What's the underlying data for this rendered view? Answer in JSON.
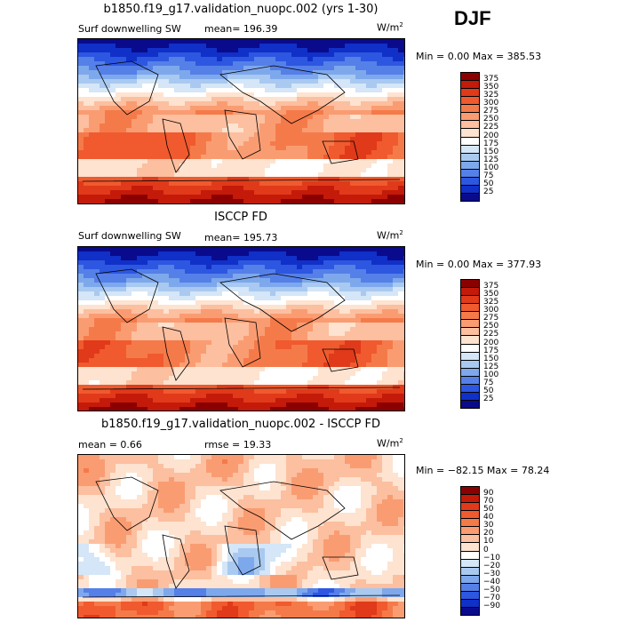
{
  "season": "DJF",
  "panels": [
    {
      "title": "b1850.f19_g17.validation_nuopc.002 (yrs 1-30)",
      "left_label": "Surf downwelling SW",
      "center_label": "mean=  196.39",
      "units": "W/m",
      "units_sup": "2",
      "range_text": "Min =    0.00 Max = 385.53",
      "palette": "abs"
    },
    {
      "title": "ISCCP FD",
      "left_label": "Surf downwelling SW",
      "center_label": "mean=  195.73",
      "units": "W/m",
      "units_sup": "2",
      "range_text": "Min =    0.00 Max = 377.93",
      "palette": "abs"
    },
    {
      "title": "b1850.f19_g17.validation_nuopc.002 - ISCCP FD",
      "left_label": "mean =    0.66",
      "center_label": "rmse =  19.33",
      "units": "W/m",
      "units_sup": "2",
      "range_text": "Min = −82.15 Max =  78.24",
      "palette": "diff"
    }
  ],
  "colorbars": {
    "abs": {
      "labels": [
        "375",
        "350",
        "325",
        "300",
        "275",
        "250",
        "225",
        "200",
        "175",
        "150",
        "125",
        "100",
        "75",
        "50",
        "25"
      ],
      "colors": [
        "#8b0000",
        "#c41a0a",
        "#e03a1a",
        "#f05a2e",
        "#f57a4a",
        "#fa9c72",
        "#fcbfa0",
        "#fde3d0",
        "#ffffff",
        "#d4e6f7",
        "#a9c9f0",
        "#7ea8ec",
        "#5580e8",
        "#2d57e0",
        "#1030c8",
        "#0a0a8c"
      ]
    },
    "diff": {
      "labels": [
        "90",
        "70",
        "50",
        "40",
        "30",
        "20",
        "10",
        "0",
        "−10",
        "−20",
        "−30",
        "−40",
        "−50",
        "−70",
        "−90"
      ],
      "colors": [
        "#8b0000",
        "#c41a0a",
        "#e03a1a",
        "#f05a2e",
        "#f57a4a",
        "#fa9c72",
        "#fcbfa0",
        "#fde3d0",
        "#ffffff",
        "#d4e6f7",
        "#a9c9f0",
        "#7ea8ec",
        "#5580e8",
        "#2d57e0",
        "#1030c8",
        "#0a0a8c"
      ]
    }
  },
  "chart_data": [
    {
      "type": "heatmap",
      "title": "b1850.f19_g17.validation_nuopc.002 (yrs 1-30)",
      "variable": "Surf downwelling SW",
      "units": "W/m2",
      "mean": 196.39,
      "min": 0.0,
      "max": 385.53,
      "contour_levels": [
        25,
        50,
        75,
        100,
        125,
        150,
        175,
        200,
        225,
        250,
        275,
        300,
        325,
        350,
        375
      ]
    },
    {
      "type": "heatmap",
      "title": "ISCCP FD",
      "variable": "Surf downwelling SW",
      "units": "W/m2",
      "mean": 195.73,
      "min": 0.0,
      "max": 377.93,
      "contour_levels": [
        25,
        50,
        75,
        100,
        125,
        150,
        175,
        200,
        225,
        250,
        275,
        300,
        325,
        350,
        375
      ]
    },
    {
      "type": "heatmap",
      "title": "b1850.f19_g17.validation_nuopc.002 - ISCCP FD",
      "units": "W/m2",
      "mean": 0.66,
      "rmse": 19.33,
      "min": -82.15,
      "max": 78.24,
      "contour_levels": [
        -90,
        -70,
        -50,
        -40,
        -30,
        -20,
        -10,
        0,
        10,
        20,
        30,
        40,
        50,
        70,
        90
      ]
    }
  ]
}
